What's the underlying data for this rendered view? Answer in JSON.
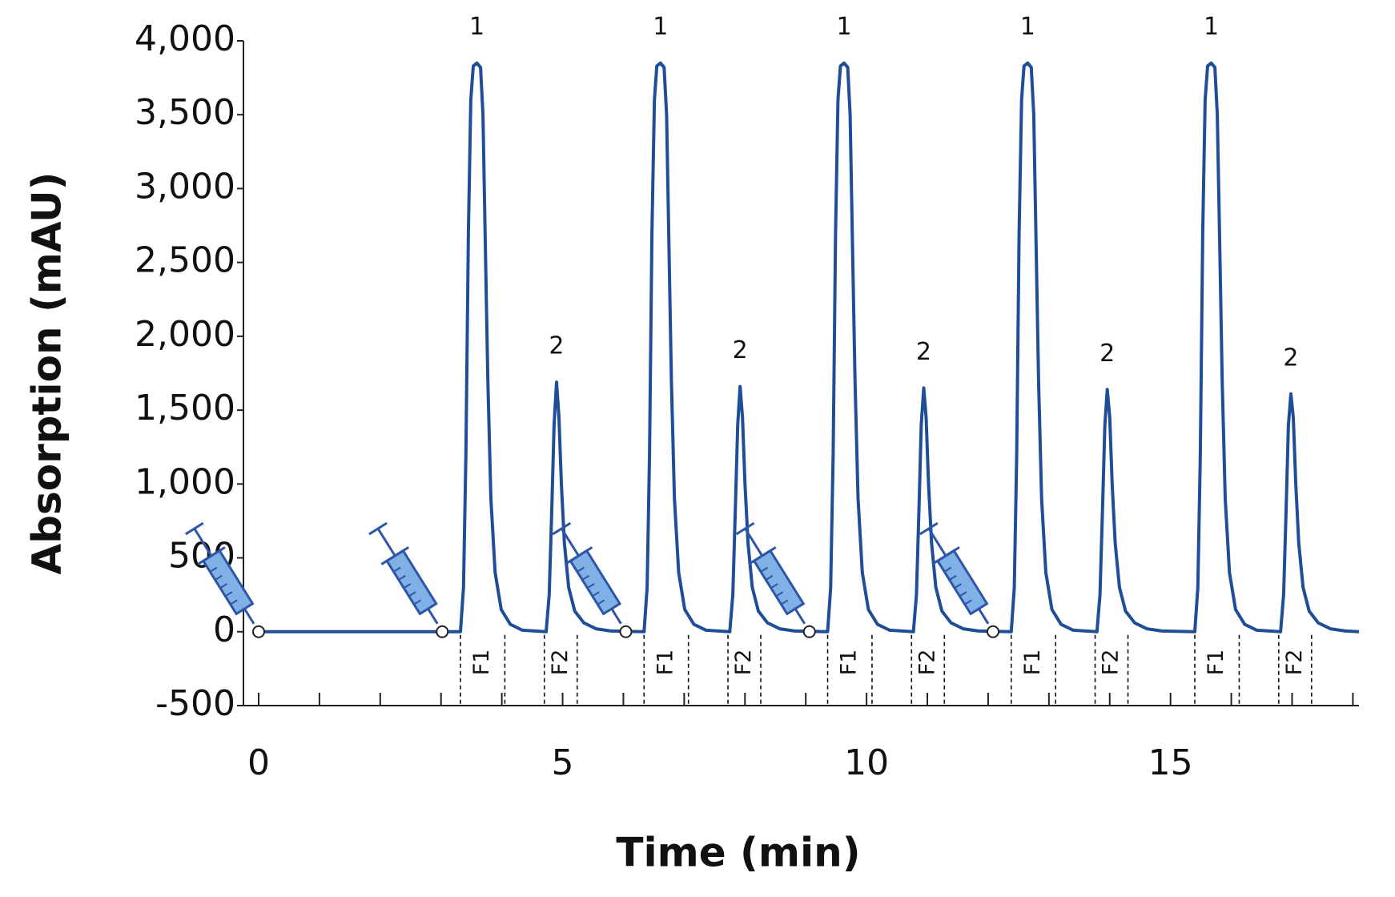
{
  "chart_data": {
    "type": "line",
    "x_label": "Time (min)",
    "y_label": "Absorption (mAU)",
    "color": "#1f4e96",
    "x": [
      0,
      3.32,
      3.37,
      3.41,
      3.45,
      3.49,
      3.53,
      3.59,
      3.65,
      3.69,
      3.73,
      3.77,
      3.82,
      3.89,
      3.99,
      4.14,
      4.34,
      4.73,
      4.78,
      4.82,
      4.86,
      4.9,
      4.94,
      4.98,
      5.03,
      5.1,
      5.2,
      5.35,
      5.55,
      5.8,
      6.34,
      6.39,
      6.43,
      6.47,
      6.51,
      6.55,
      6.61,
      6.67,
      6.71,
      6.75,
      6.79,
      6.84,
      6.91,
      7.01,
      7.16,
      7.36,
      7.75,
      7.8,
      7.84,
      7.88,
      7.92,
      7.96,
      8.0,
      8.05,
      8.12,
      8.22,
      8.37,
      8.57,
      8.82,
      9.36,
      9.41,
      9.45,
      9.49,
      9.53,
      9.57,
      9.63,
      9.69,
      9.73,
      9.77,
      9.81,
      9.86,
      9.93,
      10.03,
      10.18,
      10.38,
      10.77,
      10.82,
      10.86,
      10.9,
      10.94,
      10.98,
      11.02,
      11.07,
      11.14,
      11.24,
      11.39,
      11.59,
      11.84,
      12.38,
      12.43,
      12.47,
      12.51,
      12.55,
      12.59,
      12.65,
      12.71,
      12.75,
      12.79,
      12.83,
      12.88,
      12.95,
      13.05,
      13.2,
      13.4,
      13.79,
      13.84,
      13.88,
      13.92,
      13.96,
      14.0,
      14.04,
      14.09,
      14.16,
      14.26,
      14.41,
      14.61,
      14.86,
      15.4,
      15.45,
      15.49,
      15.53,
      15.57,
      15.61,
      15.67,
      15.73,
      15.77,
      15.81,
      15.85,
      15.9,
      15.97,
      16.07,
      16.22,
      16.42,
      16.81,
      16.86,
      16.9,
      16.94,
      16.98,
      17.02,
      17.06,
      17.11,
      17.18,
      17.28,
      17.43,
      17.63,
      17.88,
      18.1
    ],
    "values": [
      0,
      0,
      300,
      1200,
      2700,
      3600,
      3830,
      3850,
      3820,
      3500,
      2600,
      1700,
      900,
      400,
      150,
      50,
      10,
      0,
      250,
      800,
      1400,
      1690,
      1450,
      1000,
      600,
      300,
      140,
      60,
      20,
      5,
      0,
      300,
      1200,
      2700,
      3600,
      3830,
      3850,
      3820,
      3500,
      2600,
      1700,
      900,
      400,
      150,
      50,
      10,
      0,
      250,
      800,
      1400,
      1660,
      1450,
      1000,
      600,
      300,
      140,
      60,
      20,
      5,
      0,
      300,
      1200,
      2700,
      3600,
      3830,
      3850,
      3820,
      3500,
      2600,
      1700,
      900,
      400,
      150,
      50,
      10,
      0,
      250,
      800,
      1400,
      1650,
      1450,
      1000,
      600,
      300,
      140,
      60,
      20,
      5,
      0,
      300,
      1200,
      2700,
      3600,
      3830,
      3850,
      3820,
      3500,
      2600,
      1700,
      900,
      400,
      150,
      50,
      10,
      0,
      250,
      800,
      1400,
      1640,
      1450,
      1000,
      600,
      300,
      140,
      60,
      20,
      5,
      0,
      300,
      1200,
      2700,
      3600,
      3830,
      3850,
      3820,
      3500,
      2600,
      1700,
      900,
      400,
      150,
      50,
      10,
      0,
      250,
      800,
      1400,
      1610,
      1450,
      1000,
      600,
      300,
      140,
      60,
      20,
      5,
      0
    ],
    "xlim": [
      -0.25,
      18.1
    ],
    "xticks": [
      0,
      5,
      10,
      15
    ],
    "xminorticks": [
      1,
      2,
      3,
      4,
      6,
      7,
      8,
      9,
      11,
      12,
      13,
      14,
      16,
      17,
      18
    ],
    "ylim": [
      -500,
      4000
    ],
    "yticks": [
      -500,
      0,
      500,
      {
        "value": 1000,
        "label": "1,000"
      },
      {
        "value": 1500,
        "label": "1,500"
      },
      {
        "value": 2000,
        "label": "2,000"
      },
      {
        "value": 2500,
        "label": "2,500"
      },
      {
        "value": 3000,
        "label": "3,000"
      },
      {
        "value": 3500,
        "label": "3,500"
      },
      {
        "value": 4000,
        "label": "4,000"
      }
    ],
    "peak_labels": [
      {
        "text": "1",
        "x": 3.59,
        "y": 3850
      },
      {
        "text": "2",
        "x": 4.9,
        "y": 1690
      },
      {
        "text": "1",
        "x": 6.61,
        "y": 3850
      },
      {
        "text": "2",
        "x": 7.92,
        "y": 1660
      },
      {
        "text": "1",
        "x": 9.63,
        "y": 3850
      },
      {
        "text": "2",
        "x": 10.94,
        "y": 1650
      },
      {
        "text": "1",
        "x": 12.65,
        "y": 3850
      },
      {
        "text": "2",
        "x": 13.96,
        "y": 1640
      },
      {
        "text": "1",
        "x": 15.67,
        "y": 3850
      },
      {
        "text": "2",
        "x": 16.98,
        "y": 1610
      }
    ],
    "fractions": [
      {
        "label": "F1",
        "start": 3.32,
        "end": 4.05
      },
      {
        "label": "F2",
        "start": 4.7,
        "end": 5.24
      },
      {
        "label": "F1",
        "start": 6.34,
        "end": 7.07
      },
      {
        "label": "F2",
        "start": 7.72,
        "end": 8.26
      },
      {
        "label": "F1",
        "start": 9.36,
        "end": 10.09
      },
      {
        "label": "F2",
        "start": 10.74,
        "end": 11.28
      },
      {
        "label": "F1",
        "start": 12.38,
        "end": 13.11
      },
      {
        "label": "F2",
        "start": 13.76,
        "end": 14.3
      },
      {
        "label": "F1",
        "start": 15.4,
        "end": 16.13
      },
      {
        "label": "F2",
        "start": 16.78,
        "end": 17.32
      }
    ],
    "injections": [
      0,
      3.02,
      6.04,
      9.06,
      12.08
    ]
  }
}
